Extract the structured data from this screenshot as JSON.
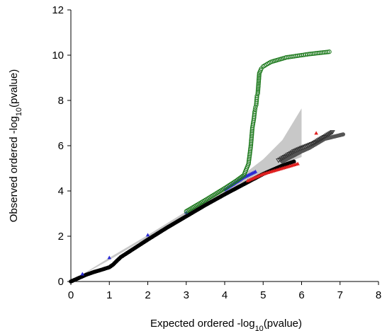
{
  "chart_data": {
    "type": "scatter",
    "title": "",
    "xlabel": {
      "main": "Expected ordered -log",
      "sub": "10",
      "tail": "(pvalue)"
    },
    "ylabel": {
      "main": "Observed ordered -log",
      "sub": "10",
      "tail": "(pvalue)"
    },
    "xlim": [
      0,
      8
    ],
    "ylim": [
      0,
      12
    ],
    "xticks": [
      "0",
      "1",
      "2",
      "3",
      "4",
      "5",
      "6",
      "7",
      "8"
    ],
    "yticks": [
      "0",
      "2",
      "4",
      "6",
      "8",
      "10",
      "12"
    ],
    "grid": false,
    "legend": "none",
    "confidence_band": {
      "color": "#c8c8c8",
      "x": [
        0,
        1,
        2,
        3,
        3.5,
        4,
        4.5,
        5,
        5.5,
        6
      ],
      "lower": [
        0,
        0.95,
        1.95,
        2.92,
        3.4,
        3.88,
        4.34,
        4.78,
        5.18,
        5.5
      ],
      "upper": [
        0,
        1.05,
        2.05,
        3.1,
        3.62,
        4.17,
        4.75,
        5.4,
        6.25,
        7.65
      ]
    },
    "series": [
      {
        "color": "#000000",
        "marker": "circle-filled",
        "x": [
          0,
          0.2,
          0.4,
          0.6,
          0.8,
          1.0,
          1.1,
          1.2,
          1.3,
          1.5,
          2,
          2.5,
          3,
          3.5,
          4,
          4.5,
          5,
          5.5,
          5.8
        ],
        "y": [
          0,
          0.15,
          0.3,
          0.42,
          0.52,
          0.63,
          0.75,
          0.92,
          1.08,
          1.3,
          1.85,
          2.38,
          2.88,
          3.38,
          3.85,
          4.3,
          4.75,
          5.12,
          5.3
        ]
      },
      {
        "color": "#2a2ad4",
        "marker": "triangle-filled",
        "x": [
          0.3,
          1,
          2,
          3,
          4,
          4.5,
          4.8
        ],
        "y": [
          0.33,
          1.05,
          2.05,
          3.05,
          4.05,
          4.6,
          4.85
        ]
      },
      {
        "color": "#1e7a1e",
        "marker": "circle-open",
        "x": [
          3,
          3.5,
          4,
          4.3,
          4.5,
          4.62,
          4.68,
          4.72,
          4.76,
          4.78,
          4.8,
          4.82,
          4.84,
          4.86,
          4.9,
          4.95,
          5.0,
          5.2,
          5.4,
          5.6,
          5.8,
          6.0,
          6.2,
          6.72
        ],
        "y": [
          3.1,
          3.6,
          4.12,
          4.45,
          4.7,
          5.2,
          6.0,
          6.8,
          7.2,
          7.5,
          7.7,
          7.8,
          8.2,
          8.3,
          9.2,
          9.4,
          9.5,
          9.7,
          9.8,
          9.9,
          9.95,
          10.0,
          10.05,
          10.15
        ]
      },
      {
        "color": "#e02020",
        "marker": "triangle-filled",
        "x": [
          4.6,
          5,
          5.3,
          5.6,
          5.9,
          6.38
        ],
        "y": [
          4.45,
          4.75,
          4.9,
          5.05,
          5.2,
          6.55
        ]
      },
      {
        "color": "#555555",
        "marker": "circle-filled",
        "x": [
          5.5,
          6,
          6.2,
          6.4,
          6.6,
          7.08
        ],
        "y": [
          5.3,
          5.75,
          5.9,
          6.1,
          6.3,
          6.5
        ]
      },
      {
        "color": "#333333",
        "marker": "triangle-down-open",
        "x": [
          5.4,
          5.6,
          5.8,
          6.0,
          6.3,
          6.8
        ],
        "y": [
          5.35,
          5.55,
          5.75,
          5.9,
          6.1,
          6.6
        ]
      }
    ]
  }
}
